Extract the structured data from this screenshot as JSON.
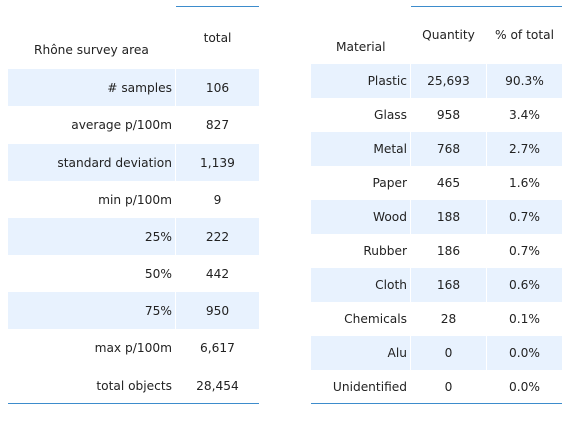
{
  "summary_table": {
    "row_header_title": "Rhône survey area",
    "column_header": "total",
    "rows": [
      {
        "label": "# samples",
        "value": "106"
      },
      {
        "label": "average p/100m",
        "value": "827"
      },
      {
        "label": "standard deviation",
        "value": "1,139"
      },
      {
        "label": "min p/100m",
        "value": "9"
      },
      {
        "label": "25%",
        "value": "222"
      },
      {
        "label": "50%",
        "value": "442"
      },
      {
        "label": "75%",
        "value": "950"
      },
      {
        "label": "max p/100m",
        "value": "6,617"
      },
      {
        "label": "total objects",
        "value": "28,454"
      }
    ]
  },
  "material_table": {
    "columns": [
      "Material",
      "Quantity",
      "% of total"
    ],
    "rows": [
      {
        "material": "Plastic",
        "quantity": "25,693",
        "percent": "90.3%"
      },
      {
        "material": "Glass",
        "quantity": "958",
        "percent": "3.4%"
      },
      {
        "material": "Metal",
        "quantity": "768",
        "percent": "2.7%"
      },
      {
        "material": "Paper",
        "quantity": "465",
        "percent": "1.6%"
      },
      {
        "material": "Wood",
        "quantity": "188",
        "percent": "0.7%"
      },
      {
        "material": "Rubber",
        "quantity": "186",
        "percent": "0.7%"
      },
      {
        "material": "Cloth",
        "quantity": "168",
        "percent": "0.6%"
      },
      {
        "material": "Chemicals",
        "quantity": "28",
        "percent": "0.1%"
      },
      {
        "material": "Alu",
        "quantity": "0",
        "percent": "0.0%"
      },
      {
        "material": "Unidentified",
        "quantity": "0",
        "percent": "0.0%"
      }
    ]
  },
  "colors": {
    "band": "#e8f2fe",
    "rule": "#3d8ccc",
    "text": "#222222"
  }
}
